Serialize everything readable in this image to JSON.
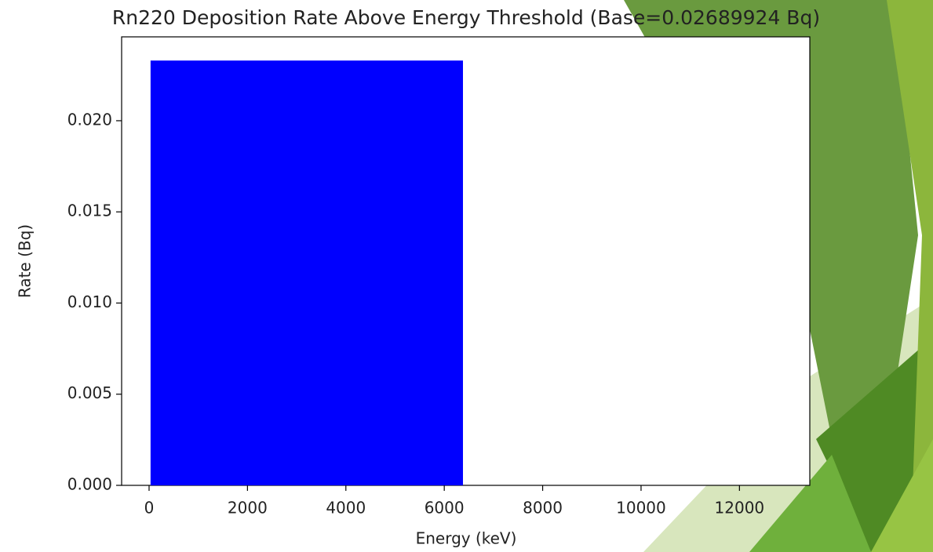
{
  "chart_data": {
    "type": "histogram",
    "title": "Rn220 Deposition Rate Above Energy Threshold (Base=0.02689924 Bq)",
    "x_label": "Energy (keV)",
    "y_label": "Rate (Bq)",
    "bins": [
      30,
      6380
    ],
    "values": [
      0.0233
    ],
    "color": "#0000ff",
    "xlim": [
      -558,
      13430
    ],
    "xticks": [
      0,
      2000,
      4000,
      6000,
      8000,
      10000,
      12000
    ],
    "ylim": [
      0,
      0.0246
    ],
    "yticks": [
      {
        "value": 0,
        "label": "0.000"
      },
      {
        "value": 0.005,
        "label": "0.005"
      },
      {
        "value": 0.01,
        "label": "0.010"
      },
      {
        "value": 0.015,
        "label": "0.015"
      },
      {
        "value": 0.02,
        "label": "0.020"
      }
    ],
    "grid": false
  }
}
